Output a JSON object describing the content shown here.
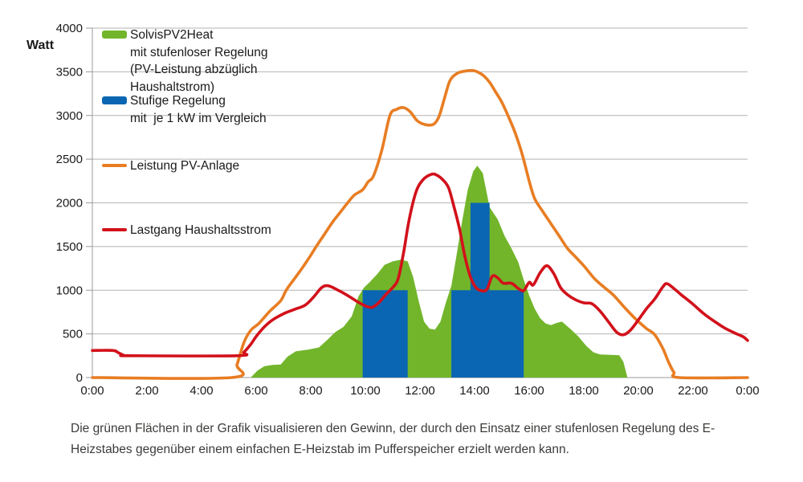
{
  "y_axis_label": "Watt",
  "caption": "Die grünen Flächen in der Grafik visualisieren den Gewinn, der durch den Einsatz einer stufenlosen Regelung des E-Heizstabes gegenüber einem einfachen E-Heizstab im Pufferspeicher erzielt werden kann.",
  "colors": {
    "green": "#72b52b",
    "blue": "#0a66b2",
    "orange": "#e87d23",
    "red": "#d2111b",
    "gridline": "#b3b3b3",
    "axis": "#9a9a9a",
    "text": "#1a1a1a",
    "caption_text": "#3c3c3b"
  },
  "legend": {
    "items": [
      {
        "name": "solvis-pv2heat",
        "swatch": "area",
        "color_key": "green",
        "lines": [
          "SolvisPV2Heat",
          "mit stufenloser Regelung",
          "(PV-Leistung abzüglich",
          "Haushaltstrom)"
        ]
      },
      {
        "name": "stufige-regelung",
        "swatch": "area",
        "color_key": "blue",
        "lines": [
          "Stufige Regelung",
          "mit  je 1 kW im Vergleich"
        ]
      },
      {
        "name": "leistung-pv-anlage",
        "swatch": "line",
        "color_key": "orange",
        "lines": [
          "Leistung PV-Anlage"
        ]
      },
      {
        "name": "lastgang-haushaltsstrom",
        "swatch": "line",
        "color_key": "red",
        "lines": [
          "Lastgang Haushaltsstrom"
        ]
      }
    ]
  },
  "chart_data": {
    "type": "area",
    "title": "",
    "xlabel": "",
    "ylabel": "Watt",
    "x_unit": "hours",
    "xlim": [
      0,
      24
    ],
    "ylim": [
      0,
      4000
    ],
    "grid": "horizontal",
    "legend_position": "top-left-inside",
    "x_tick_labels": [
      "0:00",
      "2:00",
      "4:00",
      "6:00",
      "8:00",
      "10:00",
      "12:00",
      "14:00",
      "16:00",
      "18:00",
      "20:00",
      "22:00",
      "0:00"
    ],
    "y_tick_labels": [
      "0",
      "500",
      "1000",
      "1500",
      "2000",
      "2500",
      "3000",
      "3500",
      "4000"
    ],
    "y_tick_values": [
      0,
      500,
      1000,
      1500,
      2000,
      2500,
      3000,
      3500,
      4000
    ],
    "series": [
      {
        "name": "SolvisPV2Heat mit stufenloser Regelung (PV-Leistung abzüglich Haushaltstrom)",
        "type": "area",
        "color_key": "green",
        "points": [
          [
            5.8,
            0
          ],
          [
            6.05,
            80
          ],
          [
            6.3,
            130
          ],
          [
            6.6,
            145
          ],
          [
            6.9,
            150
          ],
          [
            7.15,
            240
          ],
          [
            7.45,
            300
          ],
          [
            7.9,
            320
          ],
          [
            8.3,
            345
          ],
          [
            8.6,
            430
          ],
          [
            8.9,
            520
          ],
          [
            9.2,
            580
          ],
          [
            9.5,
            700
          ],
          [
            9.75,
            930
          ],
          [
            9.95,
            1030
          ],
          [
            10.15,
            1090
          ],
          [
            10.45,
            1190
          ],
          [
            10.7,
            1290
          ],
          [
            11.0,
            1330
          ],
          [
            11.3,
            1350
          ],
          [
            11.55,
            1330
          ],
          [
            11.75,
            1150
          ],
          [
            11.95,
            880
          ],
          [
            12.15,
            640
          ],
          [
            12.35,
            560
          ],
          [
            12.55,
            550
          ],
          [
            12.75,
            640
          ],
          [
            12.95,
            860
          ],
          [
            13.15,
            1050
          ],
          [
            13.35,
            1420
          ],
          [
            13.55,
            1800
          ],
          [
            13.75,
            2150
          ],
          [
            13.95,
            2360
          ],
          [
            14.1,
            2425
          ],
          [
            14.3,
            2340
          ],
          [
            14.55,
            1950
          ],
          [
            14.85,
            1810
          ],
          [
            15.1,
            1620
          ],
          [
            15.35,
            1480
          ],
          [
            15.6,
            1320
          ],
          [
            15.8,
            1120
          ],
          [
            16.0,
            940
          ],
          [
            16.2,
            790
          ],
          [
            16.4,
            680
          ],
          [
            16.6,
            620
          ],
          [
            16.8,
            600
          ],
          [
            17.0,
            625
          ],
          [
            17.2,
            640
          ],
          [
            17.5,
            560
          ],
          [
            17.8,
            470
          ],
          [
            18.1,
            360
          ],
          [
            18.35,
            290
          ],
          [
            18.6,
            265
          ],
          [
            19.0,
            260
          ],
          [
            19.3,
            255
          ],
          [
            19.45,
            180
          ],
          [
            19.6,
            0
          ]
        ]
      },
      {
        "name": "Stufige Regelung mit je 1 kW im Vergleich",
        "type": "bars",
        "color_key": "blue",
        "bars": [
          {
            "from_h": 9.9,
            "to_h": 11.55,
            "w_from": 0,
            "w_to": 1000
          },
          {
            "from_h": 13.15,
            "to_h": 15.8,
            "w_from": 0,
            "w_to": 1000
          },
          {
            "from_h": 13.85,
            "to_h": 14.55,
            "w_from": 1000,
            "w_to": 2000
          }
        ]
      },
      {
        "name": "Leistung PV-Anlage",
        "type": "line",
        "color_key": "orange",
        "points": [
          [
            0,
            0
          ],
          [
            5.1,
            0
          ],
          [
            5.3,
            150
          ],
          [
            5.55,
            400
          ],
          [
            5.8,
            540
          ],
          [
            6.1,
            620
          ],
          [
            6.5,
            760
          ],
          [
            6.9,
            880
          ],
          [
            7.1,
            1000
          ],
          [
            7.4,
            1130
          ],
          [
            7.7,
            1260
          ],
          [
            8.0,
            1400
          ],
          [
            8.2,
            1500
          ],
          [
            8.5,
            1640
          ],
          [
            8.8,
            1780
          ],
          [
            9.1,
            1900
          ],
          [
            9.35,
            2000
          ],
          [
            9.6,
            2090
          ],
          [
            9.9,
            2150
          ],
          [
            10.1,
            2240
          ],
          [
            10.3,
            2310
          ],
          [
            10.6,
            2600
          ],
          [
            10.9,
            3000
          ],
          [
            11.15,
            3070
          ],
          [
            11.4,
            3090
          ],
          [
            11.65,
            3040
          ],
          [
            11.9,
            2940
          ],
          [
            12.2,
            2895
          ],
          [
            12.5,
            2900
          ],
          [
            12.7,
            2990
          ],
          [
            12.9,
            3200
          ],
          [
            13.1,
            3400
          ],
          [
            13.35,
            3480
          ],
          [
            13.6,
            3505
          ],
          [
            13.9,
            3515
          ],
          [
            14.1,
            3500
          ],
          [
            14.35,
            3450
          ],
          [
            14.55,
            3380
          ],
          [
            14.75,
            3280
          ],
          [
            15.0,
            3150
          ],
          [
            15.25,
            2980
          ],
          [
            15.5,
            2790
          ],
          [
            15.75,
            2550
          ],
          [
            16.0,
            2250
          ],
          [
            16.2,
            2050
          ],
          [
            16.5,
            1900
          ],
          [
            16.8,
            1760
          ],
          [
            17.1,
            1620
          ],
          [
            17.4,
            1480
          ],
          [
            17.7,
            1380
          ],
          [
            18.0,
            1280
          ],
          [
            18.4,
            1130
          ],
          [
            18.8,
            1020
          ],
          [
            19.1,
            940
          ],
          [
            19.5,
            800
          ],
          [
            19.9,
            670
          ],
          [
            20.3,
            560
          ],
          [
            20.6,
            490
          ],
          [
            20.9,
            330
          ],
          [
            21.1,
            180
          ],
          [
            21.3,
            60
          ],
          [
            21.5,
            0
          ],
          [
            24,
            0
          ]
        ]
      },
      {
        "name": "Lastgang Haushaltsstrom",
        "type": "line",
        "color_key": "red",
        "points": [
          [
            0,
            310
          ],
          [
            0.75,
            310
          ],
          [
            0.95,
            285
          ],
          [
            1.15,
            255
          ],
          [
            1.4,
            250
          ],
          [
            5.3,
            250
          ],
          [
            5.55,
            290
          ],
          [
            5.8,
            380
          ],
          [
            6.0,
            470
          ],
          [
            6.3,
            580
          ],
          [
            6.6,
            660
          ],
          [
            7.0,
            730
          ],
          [
            7.4,
            780
          ],
          [
            7.8,
            830
          ],
          [
            8.1,
            920
          ],
          [
            8.4,
            1030
          ],
          [
            8.65,
            1050
          ],
          [
            9.0,
            1000
          ],
          [
            9.4,
            930
          ],
          [
            9.7,
            870
          ],
          [
            10.0,
            820
          ],
          [
            10.25,
            805
          ],
          [
            10.5,
            860
          ],
          [
            10.75,
            950
          ],
          [
            11.0,
            1030
          ],
          [
            11.2,
            1130
          ],
          [
            11.4,
            1430
          ],
          [
            11.6,
            1800
          ],
          [
            11.85,
            2120
          ],
          [
            12.1,
            2260
          ],
          [
            12.4,
            2325
          ],
          [
            12.6,
            2320
          ],
          [
            12.85,
            2260
          ],
          [
            13.05,
            2170
          ],
          [
            13.25,
            1950
          ],
          [
            13.45,
            1700
          ],
          [
            13.65,
            1380
          ],
          [
            13.85,
            1150
          ],
          [
            14.05,
            1030
          ],
          [
            14.25,
            995
          ],
          [
            14.45,
            1010
          ],
          [
            14.65,
            1160
          ],
          [
            14.85,
            1140
          ],
          [
            15.05,
            1080
          ],
          [
            15.35,
            1080
          ],
          [
            15.6,
            1020
          ],
          [
            15.8,
            995
          ],
          [
            16.0,
            1090
          ],
          [
            16.15,
            1060
          ],
          [
            16.4,
            1200
          ],
          [
            16.65,
            1280
          ],
          [
            16.9,
            1190
          ],
          [
            17.15,
            1030
          ],
          [
            17.4,
            950
          ],
          [
            17.7,
            890
          ],
          [
            18.0,
            855
          ],
          [
            18.3,
            845
          ],
          [
            18.6,
            760
          ],
          [
            18.9,
            640
          ],
          [
            19.2,
            520
          ],
          [
            19.45,
            490
          ],
          [
            19.7,
            540
          ],
          [
            20.0,
            660
          ],
          [
            20.3,
            790
          ],
          [
            20.6,
            900
          ],
          [
            20.9,
            1040
          ],
          [
            21.05,
            1075
          ],
          [
            21.3,
            1020
          ],
          [
            21.6,
            940
          ],
          [
            22.0,
            840
          ],
          [
            22.4,
            730
          ],
          [
            22.8,
            640
          ],
          [
            23.2,
            560
          ],
          [
            23.6,
            500
          ],
          [
            23.85,
            465
          ],
          [
            24.0,
            425
          ]
        ]
      }
    ]
  }
}
